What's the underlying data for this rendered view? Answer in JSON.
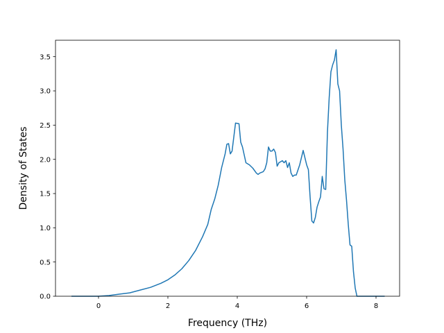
{
  "chart_data": {
    "type": "line",
    "title": "",
    "xlabel": "Frequency (THz)",
    "ylabel": "Density of States",
    "xlim": [
      -1.24,
      8.68
    ],
    "ylim": [
      0,
      3.74
    ],
    "x_ticks": [
      0,
      2,
      4,
      6,
      8
    ],
    "x_tick_labels": [
      "0",
      "2",
      "4",
      "6",
      "8"
    ],
    "y_ticks": [
      0.0,
      0.5,
      1.0,
      1.5,
      2.0,
      2.5,
      3.0,
      3.5
    ],
    "y_tick_labels": [
      "0.0",
      "0.5",
      "1.0",
      "1.5",
      "2.0",
      "2.5",
      "3.0",
      "3.5"
    ],
    "grid": false,
    "legend": "none",
    "line_color": "#1f77b4",
    "series": [
      {
        "x": [
          -0.78,
          -0.4,
          0.0,
          0.3,
          0.6,
          0.9,
          1.2,
          1.5,
          1.8,
          2.0,
          2.2,
          2.4,
          2.6,
          2.8,
          3.0,
          3.15,
          3.25,
          3.35,
          3.45,
          3.55,
          3.65,
          3.7,
          3.75,
          3.8,
          3.85,
          3.95,
          4.05,
          4.1,
          4.15,
          4.25,
          4.35,
          4.45,
          4.55,
          4.6,
          4.65,
          4.75,
          4.8,
          4.85,
          4.9,
          4.95,
          5.0,
          5.05,
          5.1,
          5.15,
          5.2,
          5.3,
          5.35,
          5.4,
          5.45,
          5.5,
          5.55,
          5.6,
          5.65,
          5.7,
          5.8,
          5.9,
          6.0,
          6.05,
          6.1,
          6.15,
          6.2,
          6.25,
          6.3,
          6.35,
          6.4,
          6.45,
          6.5,
          6.55,
          6.6,
          6.65,
          6.7,
          6.75,
          6.8,
          6.85,
          6.9,
          6.95,
          7.0,
          7.05,
          7.1,
          7.15,
          7.2,
          7.25,
          7.3,
          7.35,
          7.4,
          7.45,
          7.5,
          7.55,
          7.7,
          8.25
        ],
        "y": [
          0.0,
          0.0,
          0.0,
          0.01,
          0.03,
          0.05,
          0.09,
          0.13,
          0.19,
          0.24,
          0.31,
          0.4,
          0.52,
          0.67,
          0.87,
          1.05,
          1.27,
          1.42,
          1.62,
          1.88,
          2.08,
          2.22,
          2.23,
          2.08,
          2.12,
          2.53,
          2.52,
          2.25,
          2.18,
          1.95,
          1.92,
          1.87,
          1.8,
          1.78,
          1.8,
          1.82,
          1.86,
          1.95,
          2.18,
          2.12,
          2.12,
          2.15,
          2.1,
          1.9,
          1.95,
          1.98,
          1.95,
          1.98,
          1.88,
          1.95,
          1.8,
          1.75,
          1.77,
          1.77,
          1.92,
          2.13,
          1.92,
          1.85,
          1.45,
          1.1,
          1.07,
          1.15,
          1.3,
          1.38,
          1.45,
          1.75,
          1.57,
          1.56,
          2.4,
          2.9,
          3.28,
          3.38,
          3.45,
          3.6,
          3.1,
          3.0,
          2.5,
          2.15,
          1.7,
          1.4,
          1.05,
          0.75,
          0.73,
          0.36,
          0.12,
          0.0,
          0.0,
          0.0,
          0.0,
          0.0
        ]
      }
    ]
  }
}
